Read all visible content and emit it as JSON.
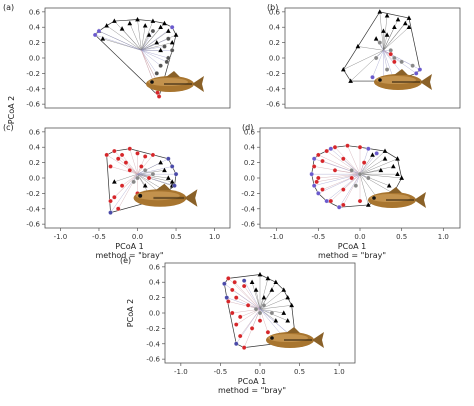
{
  "figure": {
    "shared_ylabel": "PCoA 2"
  },
  "chart_data": [
    {
      "type": "scatter",
      "panel_label": "(a)",
      "xlabel": "",
      "ylabel": "",
      "subtitle": "",
      "xlim": [
        -1.2,
        1.2
      ],
      "ylim": [
        -0.65,
        0.65
      ],
      "yticks": [
        "0.6",
        "0.4",
        "0.2",
        "0.0",
        "-0.2",
        "-0.4",
        "-0.6"
      ],
      "xticks": [],
      "centroid": [
        0.05,
        0.1
      ],
      "series": [
        {
          "marker": "triangle",
          "color": "#000000",
          "points": [
            [
              -0.5,
              0.35
            ],
            [
              -0.4,
              0.42
            ],
            [
              -0.3,
              0.48
            ],
            [
              -0.2,
              0.38
            ],
            [
              -0.1,
              0.45
            ],
            [
              0.0,
              0.5
            ],
            [
              0.1,
              0.42
            ],
            [
              0.2,
              0.48
            ],
            [
              0.3,
              0.4
            ],
            [
              0.4,
              0.35
            ],
            [
              0.5,
              0.3
            ],
            [
              0.35,
              0.45
            ],
            [
              -0.45,
              0.25
            ],
            [
              0.15,
              0.3
            ],
            [
              0.25,
              0.2
            ],
            [
              0.45,
              0.2
            ],
            [
              0.3,
              0.1
            ]
          ]
        },
        {
          "marker": "circle",
          "color": "#555555",
          "points": [
            [
              0.2,
              0.35
            ],
            [
              0.35,
              0.15
            ],
            [
              0.4,
              0.0
            ],
            [
              0.3,
              -0.1
            ],
            [
              0.25,
              -0.2
            ],
            [
              0.4,
              0.25
            ],
            [
              0.45,
              0.1
            ],
            [
              0.38,
              -0.05
            ]
          ]
        },
        {
          "marker": "circle",
          "color": "#d6262a",
          "points": [
            [
              0.25,
              -0.3
            ],
            [
              0.3,
              -0.4
            ],
            [
              0.28,
              -0.5
            ],
            [
              0.26,
              -0.45
            ]
          ]
        },
        {
          "marker": "circle",
          "color": "#6a5acd",
          "points": [
            [
              -0.55,
              0.3
            ],
            [
              -0.5,
              0.35
            ],
            [
              0.45,
              0.4
            ]
          ]
        }
      ]
    },
    {
      "type": "scatter",
      "panel_label": "(b)",
      "xlabel": "",
      "ylabel": "",
      "subtitle": "",
      "xlim": [
        -1.2,
        1.2
      ],
      "ylim": [
        -0.65,
        0.65
      ],
      "yticks": [
        "0.6",
        "0.4",
        "0.2",
        "0.0",
        "-0.2",
        "-0.4",
        "-0.6"
      ],
      "xticks": [],
      "centroid": [
        0.15,
        0.1
      ],
      "series": [
        {
          "marker": "triangle",
          "color": "#000000",
          "points": [
            [
              0.1,
              0.6
            ],
            [
              0.2,
              0.55
            ],
            [
              0.35,
              0.5
            ],
            [
              0.5,
              0.52
            ],
            [
              0.45,
              0.45
            ],
            [
              0.3,
              0.4
            ],
            [
              0.15,
              0.35
            ],
            [
              -0.2,
              0.15
            ],
            [
              -0.4,
              -0.15
            ],
            [
              -0.3,
              -0.3
            ],
            [
              0.05,
              0.25
            ],
            [
              0.2,
              0.3
            ],
            [
              0.5,
              0.4
            ]
          ]
        },
        {
          "marker": "circle",
          "color": "#888888",
          "points": [
            [
              0.1,
              0.2
            ],
            [
              0.25,
              0.1
            ],
            [
              0.3,
              0.0
            ],
            [
              0.05,
              0.0
            ],
            [
              0.4,
              -0.05
            ],
            [
              0.55,
              -0.1
            ],
            [
              0.2,
              -0.15
            ]
          ]
        },
        {
          "marker": "circle",
          "color": "#6a5acd",
          "points": [
            [
              0.0,
              -0.25
            ],
            [
              0.15,
              -0.3
            ],
            [
              0.3,
              -0.3
            ],
            [
              0.45,
              -0.25
            ],
            [
              0.6,
              -0.2
            ],
            [
              0.65,
              -0.15
            ]
          ]
        },
        {
          "marker": "circle",
          "color": "#d6262a",
          "points": [
            [
              0.25,
              0.05
            ],
            [
              0.3,
              -0.05
            ]
          ]
        }
      ]
    },
    {
      "type": "scatter",
      "panel_label": "(c)",
      "xlabel": "PCoA 1",
      "ylabel": "",
      "subtitle": "method = \"bray\"",
      "xlim": [
        -1.2,
        1.2
      ],
      "ylim": [
        -0.65,
        0.65
      ],
      "yticks": [
        "0.6",
        "0.4",
        "0.2",
        "0.0",
        "-0.2",
        "-0.4",
        "-0.6"
      ],
      "xticks": [
        "-1.0",
        "-0.5",
        "0.0",
        "0.5",
        "1.0"
      ],
      "centroid": [
        0.0,
        0.05
      ],
      "series": [
        {
          "marker": "triangle",
          "color": "#000000",
          "points": [
            [
              0.3,
              0.2
            ],
            [
              0.35,
              0.1
            ],
            [
              0.4,
              0.0
            ],
            [
              0.45,
              -0.1
            ],
            [
              0.3,
              -0.2
            ],
            [
              0.2,
              -0.3
            ],
            [
              0.1,
              -0.1
            ],
            [
              -0.3,
              -0.05
            ],
            [
              0.45,
              -0.05
            ],
            [
              0.38,
              -0.18
            ]
          ]
        },
        {
          "marker": "circle",
          "color": "#d6262a",
          "points": [
            [
              -0.3,
              0.35
            ],
            [
              -0.2,
              0.3
            ],
            [
              -0.1,
              0.38
            ],
            [
              0.0,
              0.32
            ],
            [
              0.1,
              0.28
            ],
            [
              -0.25,
              0.25
            ],
            [
              -0.15,
              0.2
            ],
            [
              0.05,
              0.15
            ],
            [
              -0.35,
              0.15
            ],
            [
              -0.4,
              0.3
            ],
            [
              0.2,
              0.3
            ],
            [
              -0.1,
              0.1
            ],
            [
              -0.2,
              -0.1
            ],
            [
              -0.3,
              -0.25
            ],
            [
              -0.25,
              -0.4
            ],
            [
              0.0,
              -0.2
            ],
            [
              0.15,
              0.0
            ],
            [
              -0.35,
              -0.3
            ]
          ]
        },
        {
          "marker": "circle",
          "color": "#4a4aa8",
          "points": [
            [
              0.45,
              0.15
            ],
            [
              0.5,
              0.05
            ],
            [
              0.4,
              0.25
            ],
            [
              -0.35,
              -0.45
            ],
            [
              0.48,
              -0.1
            ]
          ]
        },
        {
          "marker": "circle",
          "color": "#888888",
          "points": [
            [
              0.0,
              0.0
            ],
            [
              0.1,
              0.1
            ],
            [
              -0.05,
              -0.05
            ],
            [
              0.2,
              0.05
            ]
          ]
        }
      ]
    },
    {
      "type": "scatter",
      "panel_label": "(d)",
      "xlabel": "PCoA 1",
      "ylabel": "",
      "subtitle": "method = \"bray\"",
      "xlim": [
        -1.2,
        1.2
      ],
      "ylim": [
        -0.65,
        0.65
      ],
      "yticks": [
        "0.6",
        "0.4",
        "0.2",
        "0.0",
        "-0.2",
        "-0.4",
        "-0.6"
      ],
      "xticks": [
        "-1.0",
        "-0.5",
        "0.0",
        "0.5",
        "1.0"
      ],
      "centroid": [
        0.0,
        0.05
      ],
      "series": [
        {
          "marker": "triangle",
          "color": "#000000",
          "points": [
            [
              0.3,
              0.25
            ],
            [
              0.4,
              0.15
            ],
            [
              0.45,
              0.05
            ],
            [
              0.35,
              -0.1
            ],
            [
              0.2,
              -0.25
            ],
            [
              0.1,
              -0.35
            ],
            [
              0.3,
              0.35
            ],
            [
              0.15,
              0.3
            ],
            [
              0.5,
              0.0
            ],
            [
              0.4,
              -0.2
            ],
            [
              0.25,
              0.1
            ],
            [
              0.45,
              0.25
            ]
          ]
        },
        {
          "marker": "circle",
          "color": "#d6262a",
          "points": [
            [
              -0.5,
              0.3
            ],
            [
              -0.55,
              0.15
            ],
            [
              -0.5,
              0.0
            ],
            [
              -0.45,
              -0.15
            ],
            [
              -0.35,
              -0.3
            ],
            [
              -0.2,
              -0.35
            ],
            [
              -0.3,
              0.4
            ],
            [
              -0.15,
              0.42
            ],
            [
              0.0,
              0.4
            ],
            [
              -0.4,
              0.35
            ],
            [
              -0.1,
              0.0
            ],
            [
              -0.2,
              -0.15
            ],
            [
              0.0,
              -0.3
            ],
            [
              -0.3,
              0.1
            ],
            [
              -0.2,
              0.25
            ],
            [
              0.05,
              0.2
            ],
            [
              -0.45,
              0.22
            ],
            [
              -0.52,
              -0.05
            ]
          ]
        },
        {
          "marker": "circle",
          "color": "#6a5acd",
          "points": [
            [
              -0.55,
              0.25
            ],
            [
              -0.58,
              0.05
            ],
            [
              -0.55,
              -0.1
            ],
            [
              -0.4,
              -0.3
            ],
            [
              -0.25,
              -0.38
            ],
            [
              -0.35,
              0.38
            ],
            [
              0.1,
              0.38
            ],
            [
              0.2,
              0.32
            ],
            [
              -0.5,
              -0.2
            ]
          ]
        },
        {
          "marker": "circle",
          "color": "#888888",
          "points": [
            [
              0.0,
              0.05
            ],
            [
              -0.1,
              0.1
            ],
            [
              0.1,
              0.0
            ],
            [
              -0.05,
              -0.1
            ]
          ]
        }
      ]
    },
    {
      "type": "scatter",
      "panel_label": "(e)",
      "xlabel": "PCoA 1",
      "ylabel": "PCoA 2",
      "subtitle": "method = \"bray\"",
      "xlim": [
        -1.2,
        1.2
      ],
      "ylim": [
        -0.65,
        0.65
      ],
      "yticks": [
        "0.6",
        "0.4",
        "0.2",
        "0.0",
        "-0.2",
        "-0.4",
        "-0.6"
      ],
      "xticks": [
        "-1.0",
        "-0.5",
        "0.0",
        "0.5",
        "1.0"
      ],
      "centroid": [
        0.0,
        0.05
      ],
      "series": [
        {
          "marker": "triangle",
          "color": "#000000",
          "points": [
            [
              0.0,
              0.5
            ],
            [
              0.1,
              0.45
            ],
            [
              0.2,
              0.4
            ],
            [
              0.3,
              0.3
            ],
            [
              0.35,
              0.2
            ],
            [
              0.4,
              0.1
            ],
            [
              0.3,
              0.0
            ],
            [
              0.2,
              -0.1
            ],
            [
              -0.1,
              0.4
            ],
            [
              0.15,
              0.3
            ],
            [
              0.35,
              -0.1
            ],
            [
              0.05,
              0.2
            ],
            [
              -0.05,
              0.3
            ]
          ]
        },
        {
          "marker": "circle",
          "color": "#d6262a",
          "points": [
            [
              -0.4,
              0.45
            ],
            [
              -0.35,
              0.3
            ],
            [
              -0.4,
              0.15
            ],
            [
              -0.35,
              0.0
            ],
            [
              -0.3,
              -0.15
            ],
            [
              -0.25,
              -0.3
            ],
            [
              -0.2,
              -0.45
            ],
            [
              -0.1,
              -0.2
            ],
            [
              -0.15,
              0.1
            ],
            [
              0.0,
              -0.1
            ],
            [
              -0.2,
              0.35
            ],
            [
              -0.3,
              0.2
            ],
            [
              0.1,
              -0.25
            ],
            [
              -0.25,
              -0.05
            ],
            [
              -0.32,
              0.4
            ]
          ]
        },
        {
          "marker": "circle",
          "color": "#4a4aa8",
          "points": [
            [
              -0.45,
              0.38
            ],
            [
              -0.42,
              0.2
            ],
            [
              -0.3,
              -0.4
            ],
            [
              0.4,
              -0.3
            ],
            [
              0.45,
              -0.35
            ],
            [
              0.35,
              -0.38
            ],
            [
              -0.2,
              0.42
            ]
          ]
        },
        {
          "marker": "circle",
          "color": "#888888",
          "points": [
            [
              0.0,
              0.0
            ],
            [
              0.05,
              0.1
            ],
            [
              -0.05,
              0.05
            ],
            [
              0.15,
              0.0
            ]
          ]
        }
      ]
    }
  ]
}
